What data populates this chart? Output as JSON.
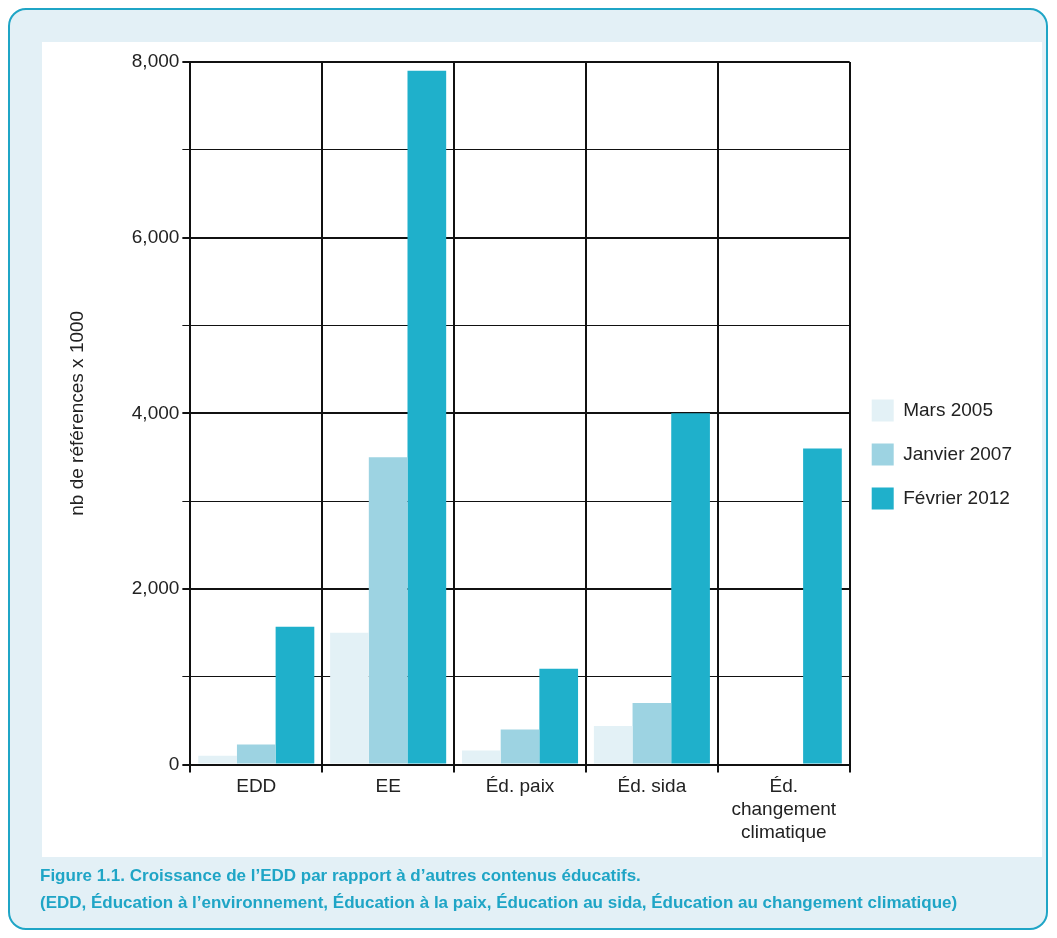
{
  "chart_data": {
    "type": "bar",
    "ylabel": "nb de références x 1000",
    "categories": [
      "EDD",
      "EE",
      "Éd. paix",
      "Éd. sida",
      "Éd. changement climatique"
    ],
    "series": [
      {
        "name": "Mars 2005",
        "color": "#e3f1f6",
        "values": [
          100,
          1500,
          160,
          440,
          null
        ]
      },
      {
        "name": "Janvier 2007",
        "color": "#9dd3e2",
        "values": [
          230,
          3500,
          400,
          700,
          null
        ]
      },
      {
        "name": "Février 2012",
        "color": "#1fb0cb",
        "values": [
          1570,
          7900,
          1090,
          4000,
          3600
        ]
      }
    ],
    "ylim": [
      0,
      8000
    ],
    "yticks": [
      {
        "value": 0,
        "label": "0"
      },
      {
        "value": 1000,
        "label": null
      },
      {
        "value": 2000,
        "label": "2,000"
      },
      {
        "value": 3000,
        "label": null
      },
      {
        "value": 4000,
        "label": "4,000"
      },
      {
        "value": 5000,
        "label": null
      },
      {
        "value": 6000,
        "label": "6,000"
      },
      {
        "value": 7000,
        "label": null
      },
      {
        "value": 8000,
        "label": "8,000"
      }
    ],
    "grid": true,
    "legend": "right",
    "annotations": [
      "Figure 1.1. Croissance de l’EDD par rapport à d’autres contenus éducatifs.",
      "(EDD, Éducation à l’environnement, Éducation à la paix, Éducation au sida, Éducation au changement climatique)"
    ]
  }
}
